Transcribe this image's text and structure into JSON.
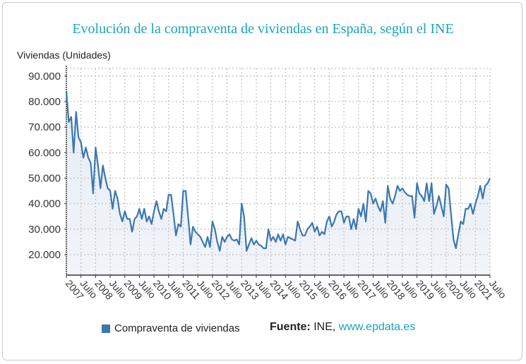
{
  "chart_data": {
    "type": "area",
    "title": "Evolución de la compraventa de viviendas en España, según el INE",
    "ylabel": "Viviendas (Unidades)",
    "xlabel": "",
    "x_start": "2007-01",
    "x_end": "2021-07",
    "frequency": "monthly",
    "x_tick_labels": [
      "2007",
      "Julio",
      "2008",
      "Julio",
      "2009",
      "Julio",
      "2010",
      "Julio",
      "2011",
      "Julio",
      "2012",
      "Julio",
      "2013",
      "Julio",
      "2014",
      "Julio",
      "2015",
      "Julio",
      "2016",
      "Julio",
      "2017",
      "Julio",
      "2018",
      "Julio",
      "2019",
      "Julio",
      "2020",
      "Julio",
      "2021",
      "Julio"
    ],
    "y_ticks": [
      20000,
      30000,
      40000,
      50000,
      60000,
      70000,
      80000,
      90000
    ],
    "y_tick_labels": [
      "20.000",
      "30.000",
      "40.000",
      "50.000",
      "60.000",
      "70.000",
      "80.000",
      "90.000"
    ],
    "ylim": [
      12000,
      93000
    ],
    "grid": true,
    "legend_position": "bottom",
    "series": [
      {
        "name": "Compraventa de viviendas",
        "color": "#3a78b0",
        "values": [
          84000,
          72000,
          74000,
          60000,
          76000,
          66000,
          64000,
          58000,
          62000,
          58000,
          56000,
          44000,
          62000,
          55000,
          46000,
          55000,
          50000,
          46000,
          45000,
          38000,
          45000,
          42000,
          36000,
          33000,
          37000,
          34000,
          34000,
          29000,
          34000,
          35000,
          38000,
          34000,
          38000,
          33000,
          35000,
          32000,
          37000,
          41000,
          37000,
          34000,
          38000,
          37000,
          43500,
          43500,
          36000,
          27500,
          32000,
          31000,
          45000,
          45000,
          35000,
          24000,
          31000,
          29000,
          28000,
          27000,
          25000,
          23000,
          27000,
          23000,
          33000,
          30000,
          25000,
          21500,
          27000,
          25000,
          27000,
          28000,
          26000,
          25500,
          26000,
          24000,
          40000,
          35000,
          21500,
          24000,
          26500,
          24000,
          25500,
          24000,
          23500,
          22500,
          22500,
          30000,
          25500,
          27000,
          25000,
          28000,
          25500,
          28000,
          24000,
          27000,
          26500,
          26000,
          25500,
          33000,
          30000,
          27500,
          27500,
          30000,
          31000,
          32500,
          29000,
          31000,
          27500,
          29000,
          28000,
          33000,
          35000,
          31000,
          33000,
          36000,
          37000,
          37000,
          32500,
          35000,
          35000,
          30000,
          34000,
          30000,
          38000,
          35000,
          40000,
          33000,
          45000,
          44000,
          40000,
          42000,
          39000,
          37000,
          41000,
          32500,
          47000,
          42000,
          40000,
          43000,
          47000,
          45000,
          46000,
          44500,
          43500,
          43000,
          43000,
          34500,
          48000,
          44000,
          43000,
          41000,
          48000,
          41000,
          48000,
          36000,
          39000,
          43000,
          39000,
          35000,
          47500,
          46000,
          36000,
          26000,
          22500,
          28000,
          33000,
          32000,
          38000,
          38000,
          40000,
          36000,
          40000,
          43000,
          47000,
          42000,
          47000,
          48000,
          50000
        ]
      }
    ]
  },
  "legend": {
    "label": "Compraventa de viviendas"
  },
  "source": {
    "label": "Fuente:",
    "name": "INE,",
    "link": "www.epdata.es"
  }
}
